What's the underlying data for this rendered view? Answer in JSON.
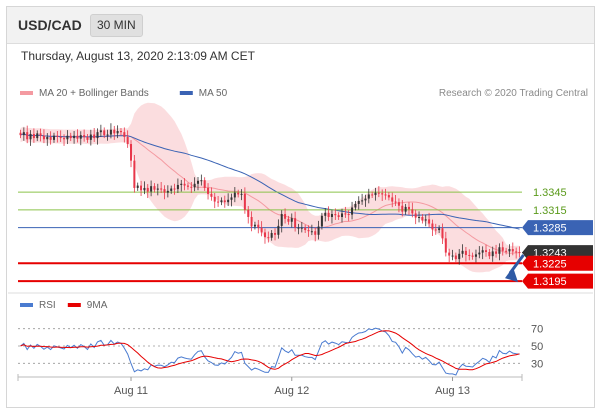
{
  "header": {
    "symbol": "USD/CAD",
    "timeframe": "30 MIN"
  },
  "datetime": "Thursday, August 13, 2020 2:13:09 AM CET",
  "colors": {
    "bullish": "#333333",
    "bearish": "#e8374a",
    "bollinger": "#f7b3b8",
    "ma20": "#f49aa1",
    "ma50": "#3a63b4",
    "green_level": "#8bc34a",
    "red_level": "#e60000",
    "rsi": "#4a7bd0",
    "rsi_ma": "#e60000",
    "arrow": "#2e5aa5"
  },
  "chart_data": [
    {
      "type": "candlestick",
      "title": "",
      "legend": [
        {
          "name": "MA 20 + Bollinger Bands",
          "color": "#f49aa1"
        },
        {
          "name": "MA 50",
          "color": "#3a63b4"
        }
      ],
      "credit": "Research © 2020 Trading Central",
      "ylim": [
        1.3185,
        1.348
      ],
      "xlabels": [
        {
          "label": "Aug 11",
          "index": 33
        },
        {
          "label": "Aug 12",
          "index": 81
        },
        {
          "label": "Aug 13",
          "index": 129
        }
      ],
      "levels": [
        {
          "value": 1.3345,
          "label": "1.3345",
          "style": "green"
        },
        {
          "value": 1.3315,
          "label": "1.3315",
          "style": "green"
        },
        {
          "value": 1.3285,
          "label": "1.3285",
          "style": "ma50"
        },
        {
          "value": 1.3243,
          "label": "1.3243",
          "style": "current"
        },
        {
          "value": 1.3225,
          "label": "1.3225",
          "style": "red"
        },
        {
          "value": 1.3195,
          "label": "1.3195",
          "style": "red"
        }
      ],
      "close": [
        1.3441,
        1.3446,
        1.3434,
        1.3443,
        1.3436,
        1.3444,
        1.344,
        1.3434,
        1.3438,
        1.3433,
        1.344,
        1.3438,
        1.3436,
        1.3434,
        1.344,
        1.3436,
        1.344,
        1.3435,
        1.3441,
        1.3438,
        1.3433,
        1.3442,
        1.3436,
        1.3446,
        1.3449,
        1.3441,
        1.3442,
        1.345,
        1.3444,
        1.3448,
        1.3446,
        1.3438,
        1.3426,
        1.3398,
        1.3352,
        1.3356,
        1.3348,
        1.3352,
        1.3346,
        1.3355,
        1.3349,
        1.3351,
        1.335,
        1.3344,
        1.3347,
        1.3351,
        1.335,
        1.3357,
        1.3359,
        1.3356,
        1.3354,
        1.3353,
        1.3359,
        1.3364,
        1.3365,
        1.3352,
        1.3342,
        1.3337,
        1.3329,
        1.3328,
        1.3331,
        1.3328,
        1.3332,
        1.3336,
        1.3344,
        1.3341,
        1.3342,
        1.3315,
        1.3303,
        1.3287,
        1.329,
        1.3285,
        1.3277,
        1.3269,
        1.3268,
        1.3276,
        1.3273,
        1.3288,
        1.3308,
        1.33,
        1.3295,
        1.3301,
        1.3285,
        1.3285,
        1.3285,
        1.3281,
        1.3279,
        1.3279,
        1.3273,
        1.3287,
        1.3305,
        1.331,
        1.3303,
        1.3308,
        1.3306,
        1.3303,
        1.3309,
        1.3308,
        1.3307,
        1.3319,
        1.3325,
        1.333,
        1.3331,
        1.3334,
        1.3341,
        1.334,
        1.3344,
        1.3343,
        1.3341,
        1.334,
        1.3336,
        1.3329,
        1.3328,
        1.3322,
        1.3312,
        1.332,
        1.3316,
        1.3309,
        1.3302,
        1.3303,
        1.3297,
        1.3299,
        1.3292,
        1.3282,
        1.3281,
        1.3284,
        1.3267,
        1.3243,
        1.3238,
        1.3238,
        1.3232,
        1.3241,
        1.3246,
        1.3239,
        1.3238,
        1.3236,
        1.324,
        1.3243,
        1.3247,
        1.3244,
        1.3237,
        1.3245,
        1.3241,
        1.3252,
        1.3246,
        1.3245,
        1.3249,
        1.3245,
        1.3244,
        1.3243
      ]
    },
    {
      "type": "line",
      "title": "",
      "legend": [
        {
          "name": "RSI",
          "color": "#4a7bd0"
        },
        {
          "name": "9MA",
          "color": "#e60000"
        }
      ],
      "ylim": [
        20,
        80
      ],
      "yticks": [
        70,
        50,
        30
      ]
    }
  ]
}
